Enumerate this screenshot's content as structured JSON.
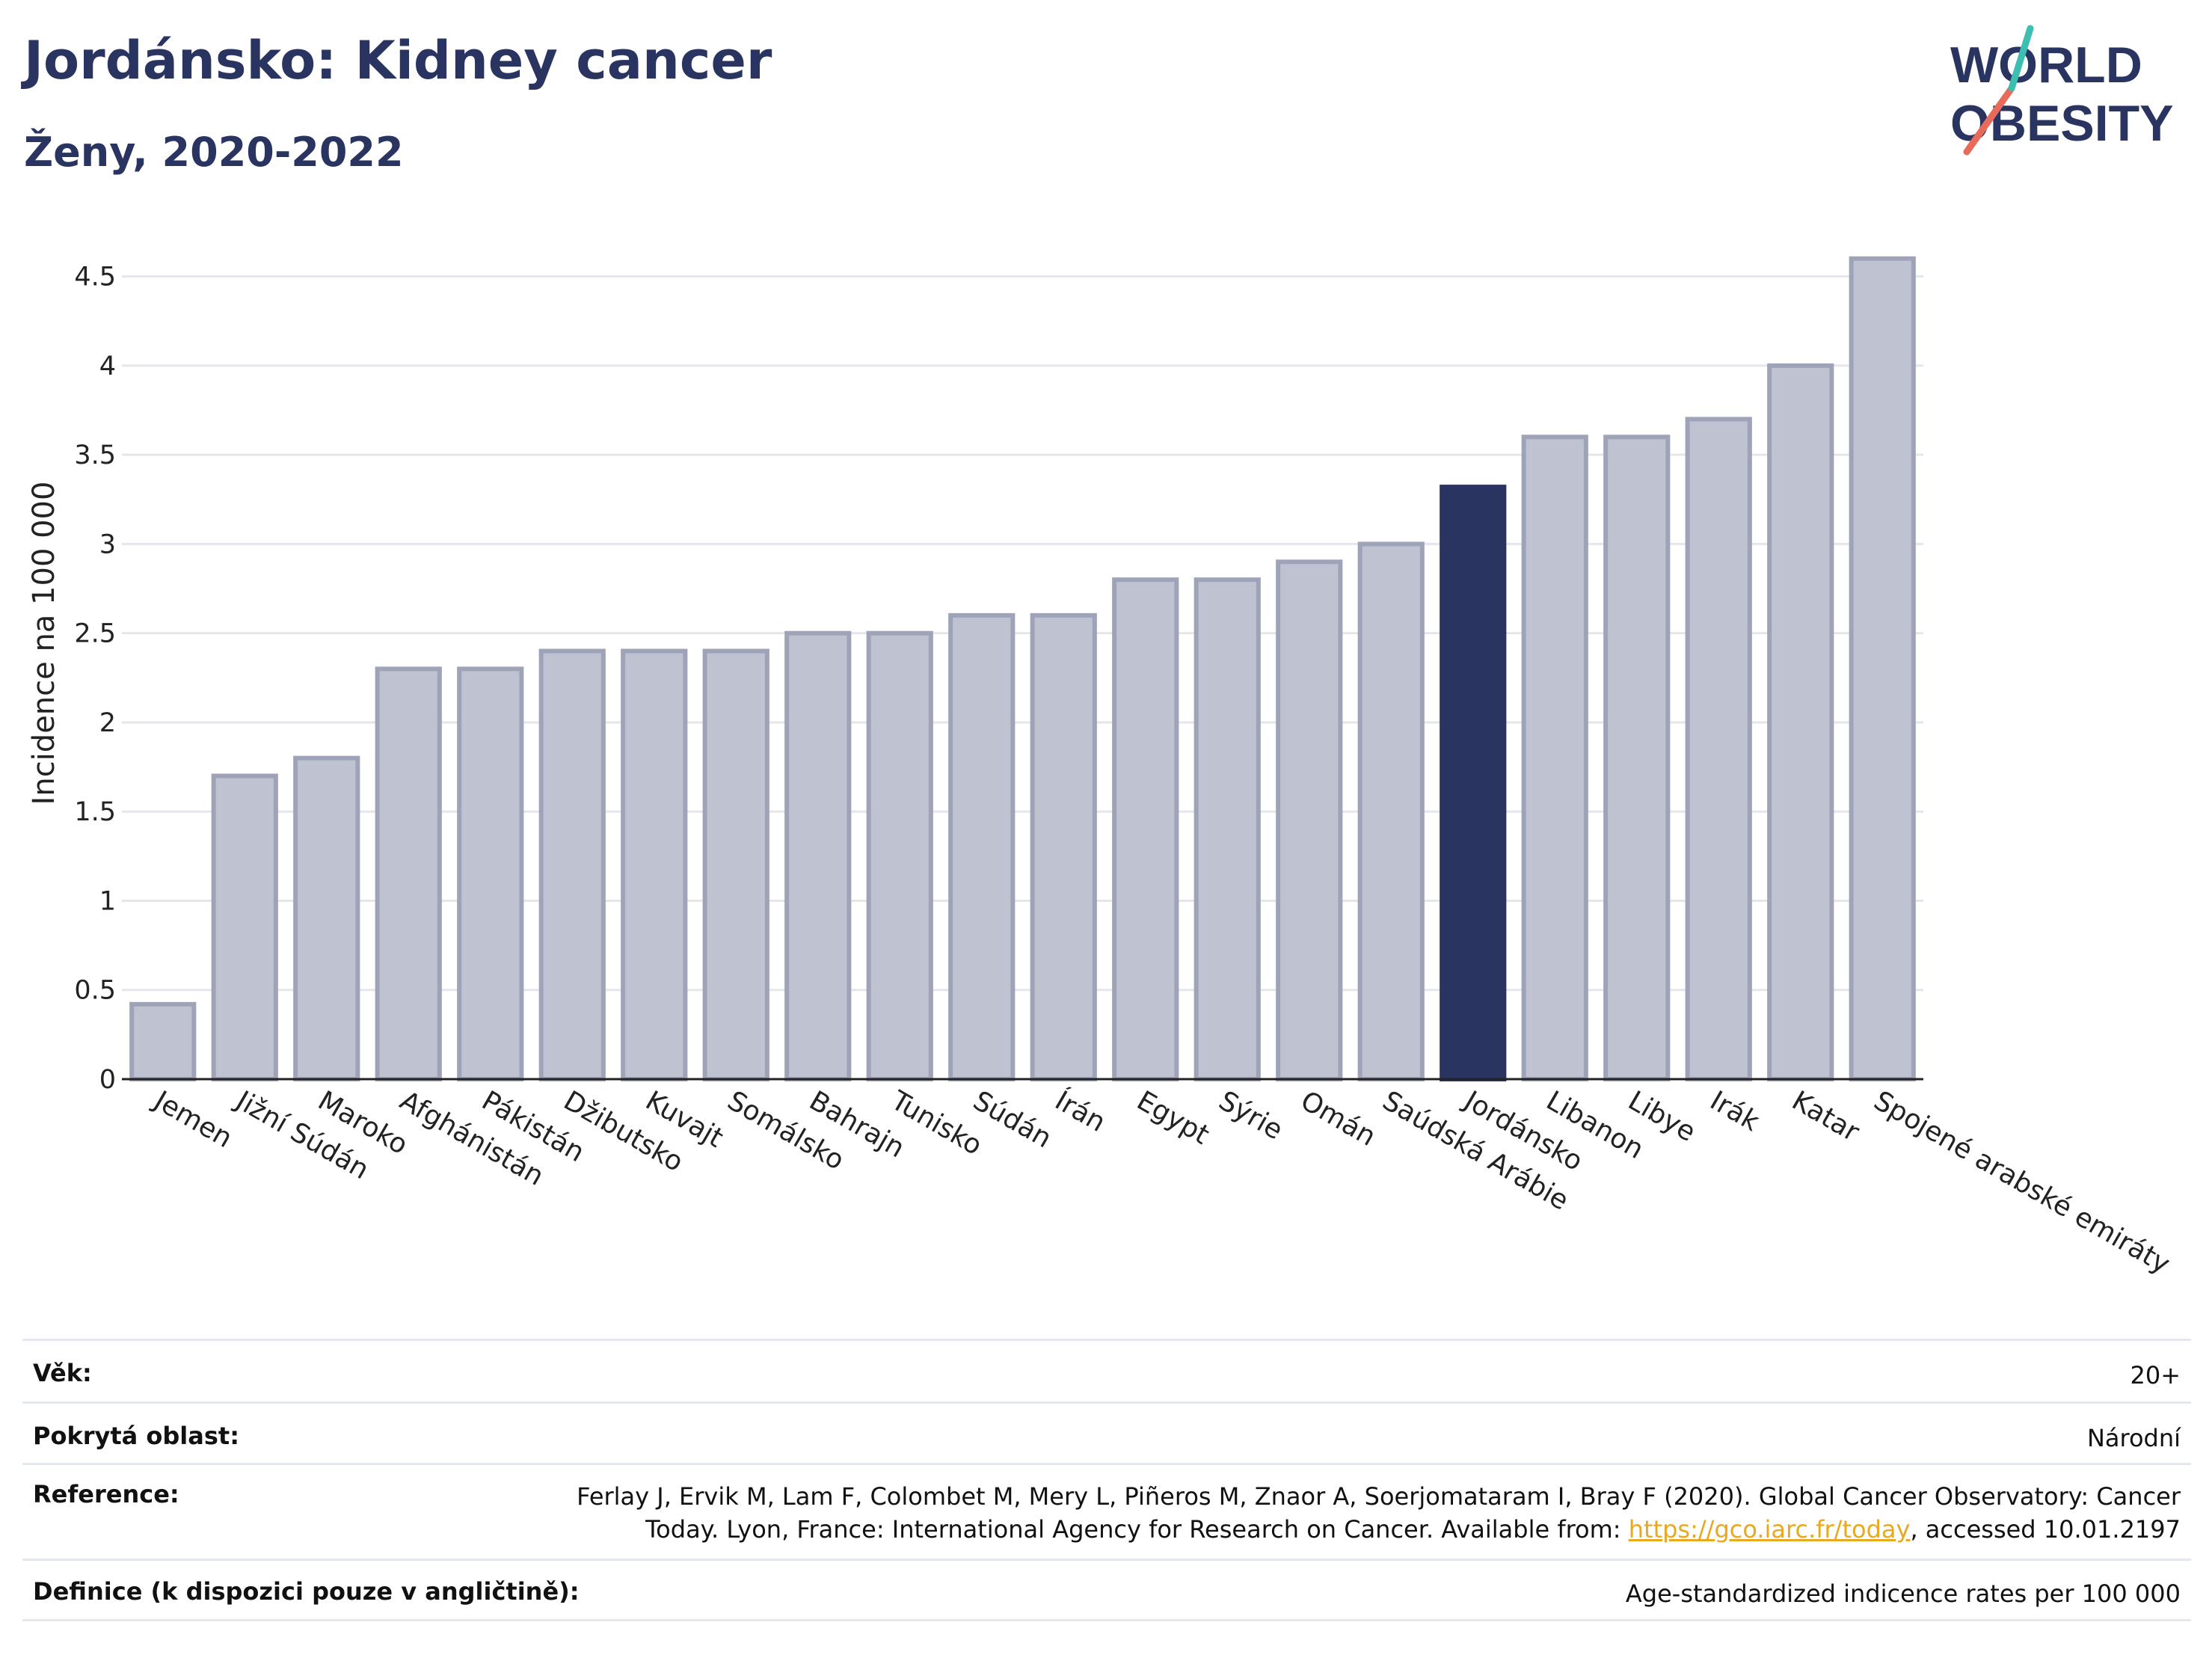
{
  "header": {
    "title": "Jordánsko: Kidney cancer",
    "subtitle": "Ženy, 2020-2022"
  },
  "logo": {
    "line1": "WORLD",
    "line2": "OBESITY",
    "accent": "#e86a5a",
    "accent2": "#3cbfb0"
  },
  "colors": {
    "bar": "#bfc2d0",
    "bar_edge": "#9ea3b8",
    "highlight": "#2a3460"
  },
  "chart_data": {
    "type": "bar",
    "ylabel": "Incidence na 100 000",
    "ylim": [
      0,
      4.75
    ],
    "yticks": [
      0,
      0.5,
      1,
      1.5,
      2,
      2.5,
      3,
      3.5,
      4,
      4.5
    ],
    "ytick_labels": [
      "0",
      "0.5",
      "1",
      "1.5",
      "2",
      "2.5",
      "3",
      "3.5",
      "4",
      "4.5"
    ],
    "grid": true,
    "highlight": "Jordánsko",
    "categories": [
      "Jemen",
      "Jižní Súdán",
      "Maroko",
      "Afghánistán",
      "Pákistán",
      "Džibutsko",
      "Kuvajt",
      "Somálsko",
      "Bahrajn",
      "Tunisko",
      "Súdán",
      "Írán",
      "Egypt",
      "Sýrie",
      "Omán",
      "Saúdská Arábie",
      "Jordánsko",
      "Libanon",
      "Libye",
      "Irák",
      "Katar",
      "Spojené arabské emiráty"
    ],
    "values": [
      0.42,
      1.7,
      1.8,
      2.3,
      2.3,
      2.4,
      2.4,
      2.4,
      2.5,
      2.5,
      2.6,
      2.6,
      2.8,
      2.8,
      2.9,
      3.0,
      3.32,
      3.6,
      3.6,
      3.7,
      4.0,
      4.6
    ]
  },
  "meta": {
    "age_label": "Věk:",
    "age_value": "20+",
    "area_label": "Pokrytá oblast:",
    "area_value": "Národní",
    "ref_label": "Reference:",
    "ref_line1": "Ferlay J, Ervik M, Lam F, Colombet M, Mery L, Piñeros M, Znaor A, Soerjomataram I, Bray F (2020). Global Cancer Observatory: Cancer",
    "ref_line2_pre": "Today. Lyon, France: International Agency for Research on Cancer. Available from: ",
    "ref_link": "https://gco.iarc.fr/today",
    "ref_line2_post": ", accessed 10.01.2197",
    "def_label": "Definice (k dispozici pouze v angličtině):",
    "def_value": "Age-standardized indicence rates per 100 000"
  }
}
